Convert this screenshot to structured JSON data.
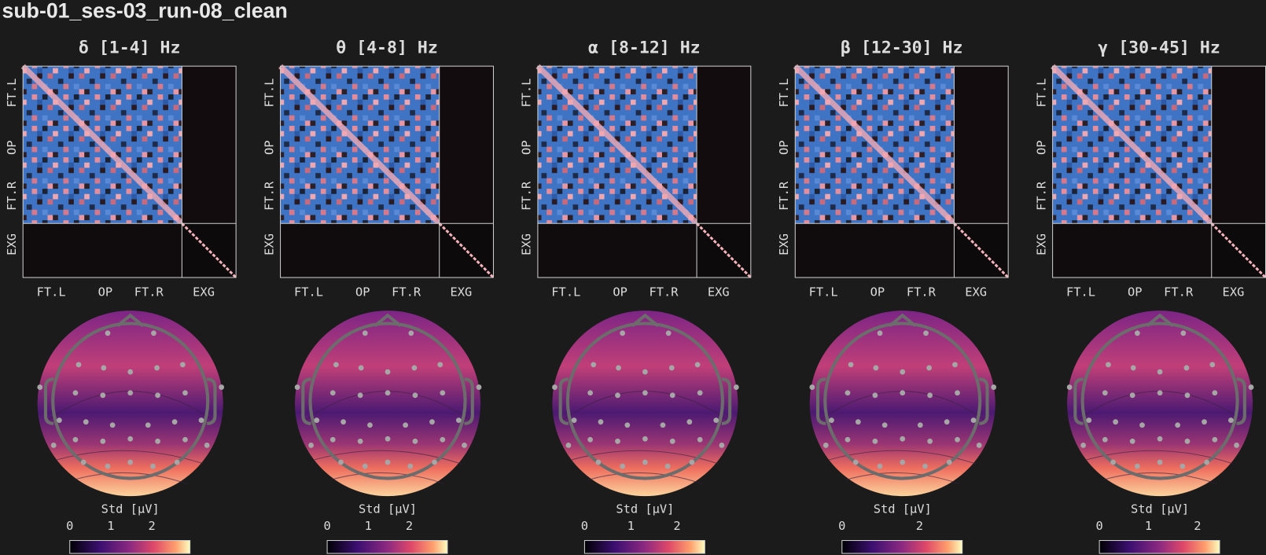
{
  "title": "sub-01_ses-03_run-08_clean",
  "panels": [
    {
      "title": "δ [1-4] Hz",
      "matrix": {
        "y_labels": [
          "FT.L",
          "OP",
          "FT.R",
          "EXG"
        ],
        "x_labels": [
          "FT.L",
          "OP",
          "FT.R",
          "EXG"
        ]
      },
      "colorbar": {
        "label": "Std [μV]",
        "lim": [
          0,
          2.93
        ],
        "ticks": [
          0,
          1,
          2
        ]
      }
    },
    {
      "title": "θ [4-8] Hz",
      "matrix": {
        "y_labels": [
          "FT.L",
          "OP",
          "FT.R",
          "EXG"
        ],
        "x_labels": [
          "FT.L",
          "OP",
          "FT.R",
          "EXG"
        ]
      },
      "colorbar": {
        "label": "Std [μV]",
        "lim": [
          0,
          2.93
        ],
        "ticks": [
          0,
          1,
          2
        ]
      }
    },
    {
      "title": "α [8-12] Hz",
      "matrix": {
        "y_labels": [
          "FT.L",
          "OP",
          "FT.R",
          "EXG"
        ],
        "x_labels": [
          "FT.L",
          "OP",
          "FT.R",
          "EXG"
        ]
      },
      "colorbar": {
        "label": "Std [μV]",
        "lim": [
          0,
          2.6
        ],
        "ticks": [
          0,
          1,
          2
        ]
      }
    },
    {
      "title": "β [12-30] Hz",
      "matrix": {
        "y_labels": [
          "FT.L",
          "OP",
          "FT.R",
          "EXG"
        ],
        "x_labels": [
          "FT.L",
          "OP",
          "FT.R",
          "EXG"
        ]
      },
      "colorbar": {
        "label": "Std [μV]",
        "lim": [
          0,
          3.1
        ],
        "ticks": [
          0,
          2
        ]
      }
    },
    {
      "title": "γ [30-45] Hz",
      "matrix": {
        "y_labels": [
          "FT.L",
          "OP",
          "FT.R",
          "EXG"
        ],
        "x_labels": [
          "FT.L",
          "OP",
          "FT.R",
          "EXG"
        ]
      },
      "colorbar": {
        "label": "Std [μV]",
        "lim": [
          0,
          2.45
        ],
        "ticks": [
          0,
          1,
          2
        ]
      }
    }
  ]
}
